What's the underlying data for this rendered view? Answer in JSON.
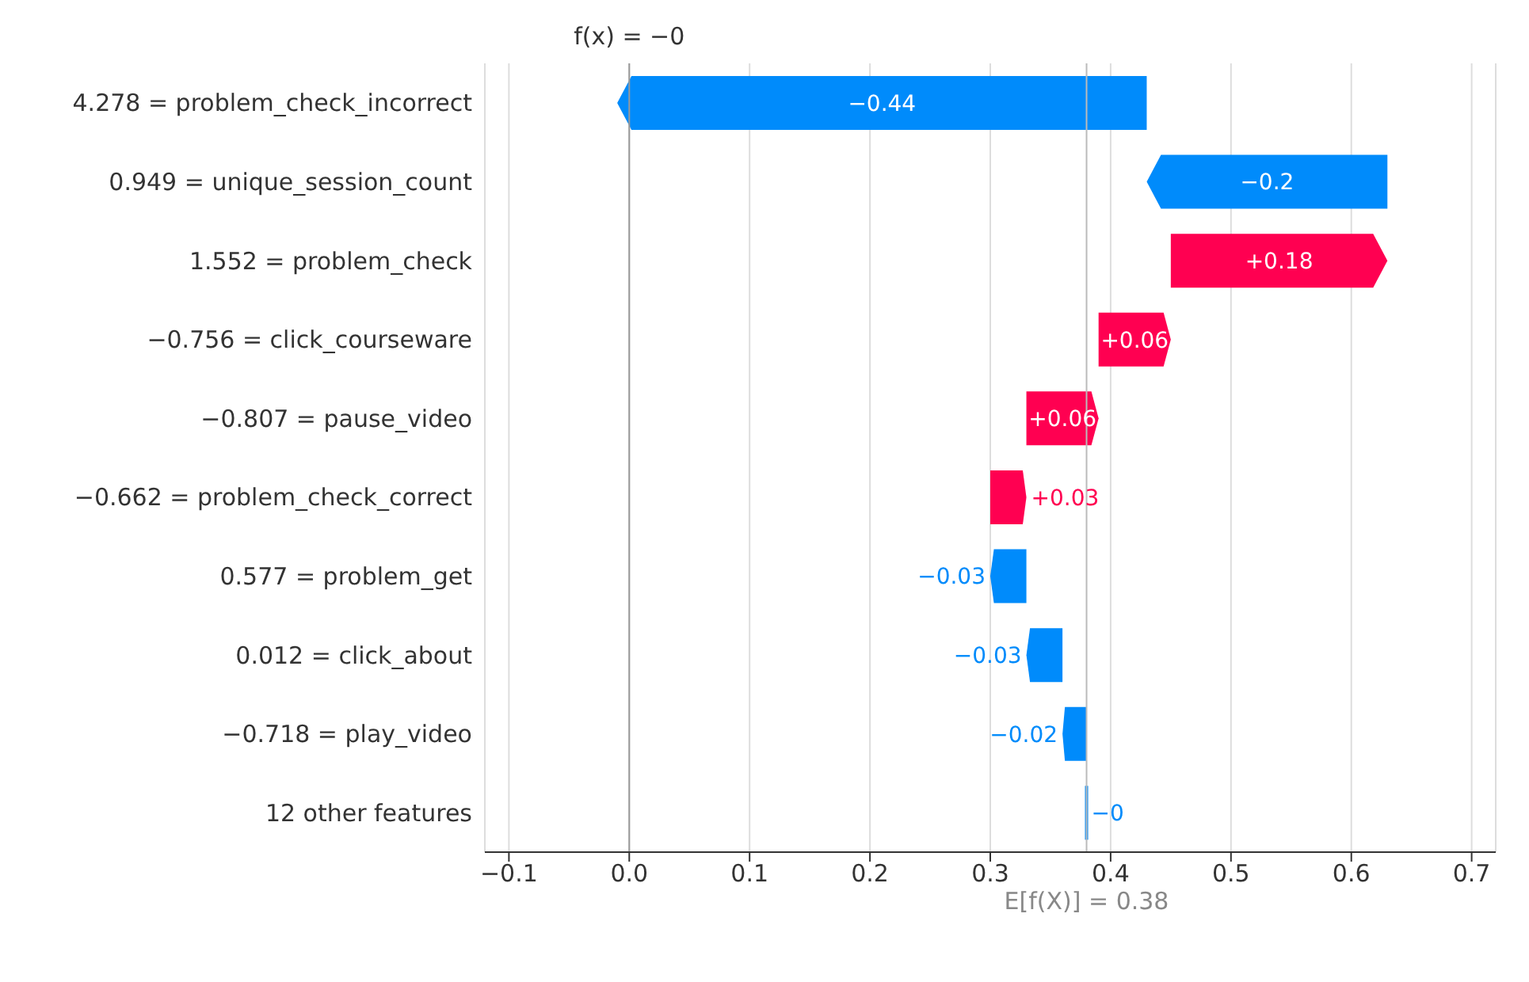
{
  "chart_data": {
    "type": "bar",
    "orientation": "horizontal",
    "categories": [
      "4.278 = problem_check_incorrect",
      "0.949 = unique_session_count",
      "1.552 = problem_check",
      "−0.756 = click_courseware",
      "−0.807 = pause_video",
      "−0.662 = problem_check_correct",
      "0.577 = problem_get",
      "0.012 = click_about",
      "−0.718 = play_video",
      "12 other features"
    ],
    "values": [
      -0.44,
      -0.2,
      0.18,
      0.06,
      0.06,
      0.03,
      -0.03,
      -0.03,
      -0.02,
      0
    ],
    "base": [
      0.43,
      0.63,
      0.45,
      0.39,
      0.33,
      0.3,
      0.33,
      0.36,
      0.38,
      0.38
    ],
    "value_labels": [
      "−0.44",
      "−0.2",
      "+0.18",
      "+0.06",
      "+0.06",
      "+0.03",
      "−0.03",
      "−0.03",
      "−0.02",
      "−0"
    ],
    "colors": [
      "#008bfb",
      "#008bfb",
      "#ff0051",
      "#ff0051",
      "#ff0051",
      "#ff0051",
      "#008bfb",
      "#008bfb",
      "#008bfb",
      "#008bfb"
    ],
    "xlim": [
      -0.12,
      0.72
    ],
    "xticks": [
      {
        "value": -0.1,
        "label": "−0.1"
      },
      {
        "value": 0,
        "label": "0.0"
      },
      0.1,
      0.2,
      0.3,
      0.4,
      0.5,
      0.6,
      0.7
    ],
    "ref_lines": [
      {
        "axis": "x",
        "value": 0,
        "label": "f(x) = −0",
        "color": "#999999"
      },
      {
        "axis": "x",
        "value": 0.38,
        "label": "E[f(X)] = 0.38",
        "color": "#bbbbbb"
      }
    ],
    "grid": "x"
  }
}
